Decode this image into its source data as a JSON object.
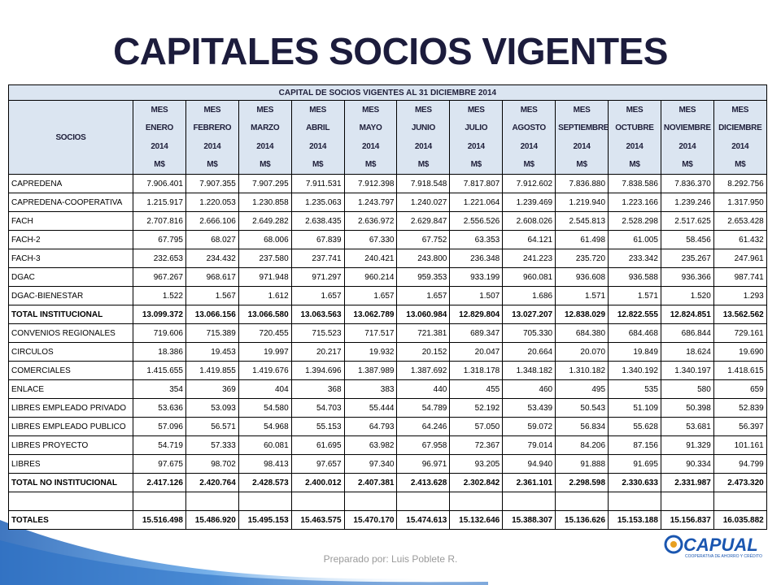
{
  "title": "CAPITALES SOCIOS VIGENTES",
  "table": {
    "caption": "CAPITAL DE SOCIOS VIGENTES AL 31 DICIEMBRE 2014",
    "first_header": "SOCIOS",
    "header_mes": "MES",
    "header_year": "2014",
    "header_unit": "M$",
    "months": [
      "ENERO",
      "FEBRERO",
      "MARZO",
      "ABRIL",
      "MAYO",
      "JUNIO",
      "JULIO",
      "AGOSTO",
      "SEPTIEMBRE",
      "OCTUBRE",
      "NOVIEMBRE",
      "DICIEMBRE"
    ],
    "rows": [
      {
        "label": "CAPREDENA",
        "cells": [
          "7.906.401",
          "7.907.355",
          "7.907.295",
          "7.911.531",
          "7.912.398",
          "7.918.548",
          "7.817.807",
          "7.912.602",
          "7.836.880",
          "7.838.586",
          "7.836.370",
          "8.292.756"
        ]
      },
      {
        "label": "CAPREDENA-COOPERATIVA",
        "cells": [
          "1.215.917",
          "1.220.053",
          "1.230.858",
          "1.235.063",
          "1.243.797",
          "1.240.027",
          "1.221.064",
          "1.239.469",
          "1.219.940",
          "1.223.166",
          "1.239.246",
          "1.317.950"
        ]
      },
      {
        "label": "FACH",
        "cells": [
          "2.707.816",
          "2.666.106",
          "2.649.282",
          "2.638.435",
          "2.636.972",
          "2.629.847",
          "2.556.526",
          "2.608.026",
          "2.545.813",
          "2.528.298",
          "2.517.625",
          "2.653.428"
        ]
      },
      {
        "label": "FACH-2",
        "cells": [
          "67.795",
          "68.027",
          "68.006",
          "67.839",
          "67.330",
          "67.752",
          "63.353",
          "64.121",
          "61.498",
          "61.005",
          "58.456",
          "61.432"
        ]
      },
      {
        "label": "FACH-3",
        "cells": [
          "232.653",
          "234.432",
          "237.580",
          "237.741",
          "240.421",
          "243.800",
          "236.348",
          "241.223",
          "235.720",
          "233.342",
          "235.267",
          "247.961"
        ]
      },
      {
        "label": "DGAC",
        "cells": [
          "967.267",
          "968.617",
          "971.948",
          "971.297",
          "960.214",
          "959.353",
          "933.199",
          "960.081",
          "936.608",
          "936.588",
          "936.366",
          "987.741"
        ]
      },
      {
        "label": "DGAC-BIENESTAR",
        "cells": [
          "1.522",
          "1.567",
          "1.612",
          "1.657",
          "1.657",
          "1.657",
          "1.507",
          "1.686",
          "1.571",
          "1.571",
          "1.520",
          "1.293"
        ]
      },
      {
        "label": "TOTAL INSTITUCIONAL",
        "total": true,
        "cells": [
          "13.099.372",
          "13.066.156",
          "13.066.580",
          "13.063.563",
          "13.062.789",
          "13.060.984",
          "12.829.804",
          "13.027.207",
          "12.838.029",
          "12.822.555",
          "12.824.851",
          "13.562.562"
        ]
      },
      {
        "label": "CONVENIOS REGIONALES",
        "cells": [
          "719.606",
          "715.389",
          "720.455",
          "715.523",
          "717.517",
          "721.381",
          "689.347",
          "705.330",
          "684.380",
          "684.468",
          "686.844",
          "729.161"
        ]
      },
      {
        "label": "CIRCULOS",
        "cells": [
          "18.386",
          "19.453",
          "19.997",
          "20.217",
          "19.932",
          "20.152",
          "20.047",
          "20.664",
          "20.070",
          "19.849",
          "18.624",
          "19.690"
        ]
      },
      {
        "label": "COMERCIALES",
        "cells": [
          "1.415.655",
          "1.419.855",
          "1.419.676",
          "1.394.696",
          "1.387.989",
          "1.387.692",
          "1.318.178",
          "1.348.182",
          "1.310.182",
          "1.340.192",
          "1.340.197",
          "1.418.615"
        ]
      },
      {
        "label": "ENLACE",
        "cells": [
          "354",
          "369",
          "404",
          "368",
          "383",
          "440",
          "455",
          "460",
          "495",
          "535",
          "580",
          "659"
        ]
      },
      {
        "label": "LIBRES EMPLEADO PRIVADO",
        "cells": [
          "53.636",
          "53.093",
          "54.580",
          "54.703",
          "55.444",
          "54.789",
          "52.192",
          "53.439",
          "50.543",
          "51.109",
          "50.398",
          "52.839"
        ]
      },
      {
        "label": "LIBRES EMPLEADO PUBLICO",
        "cells": [
          "57.096",
          "56.571",
          "54.968",
          "55.153",
          "64.793",
          "64.246",
          "57.050",
          "59.072",
          "56.834",
          "55.628",
          "53.681",
          "56.397"
        ]
      },
      {
        "label": "LIBRES PROYECTO",
        "cells": [
          "54.719",
          "57.333",
          "60.081",
          "61.695",
          "63.982",
          "67.958",
          "72.367",
          "79.014",
          "84.206",
          "87.156",
          "91.329",
          "101.161"
        ]
      },
      {
        "label": "LIBRES",
        "cells": [
          "97.675",
          "98.702",
          "98.413",
          "97.657",
          "97.340",
          "96.971",
          "93.205",
          "94.940",
          "91.888",
          "91.695",
          "90.334",
          "94.799"
        ]
      },
      {
        "label": "TOTAL NO INSTITUCIONAL",
        "total": true,
        "cells": [
          "2.417.126",
          "2.420.764",
          "2.428.573",
          "2.400.012",
          "2.407.381",
          "2.413.628",
          "2.302.842",
          "2.361.101",
          "2.298.598",
          "2.330.633",
          "2.331.987",
          "2.473.320"
        ]
      }
    ],
    "totals": {
      "label": "TOTALES",
      "total": true,
      "cells": [
        "15.516.498",
        "15.486.920",
        "15.495.153",
        "15.463.575",
        "15.470.170",
        "15.474.613",
        "15.132.646",
        "15.388.307",
        "15.136.626",
        "15.153.188",
        "15.156.837",
        "16.035.882"
      ]
    }
  },
  "footer": "Preparado por: Luis Poblete R.",
  "logo": {
    "name": "CAPUAL",
    "tagline": "COOPERATIVA DE AHORRO Y CRÉDITO"
  }
}
